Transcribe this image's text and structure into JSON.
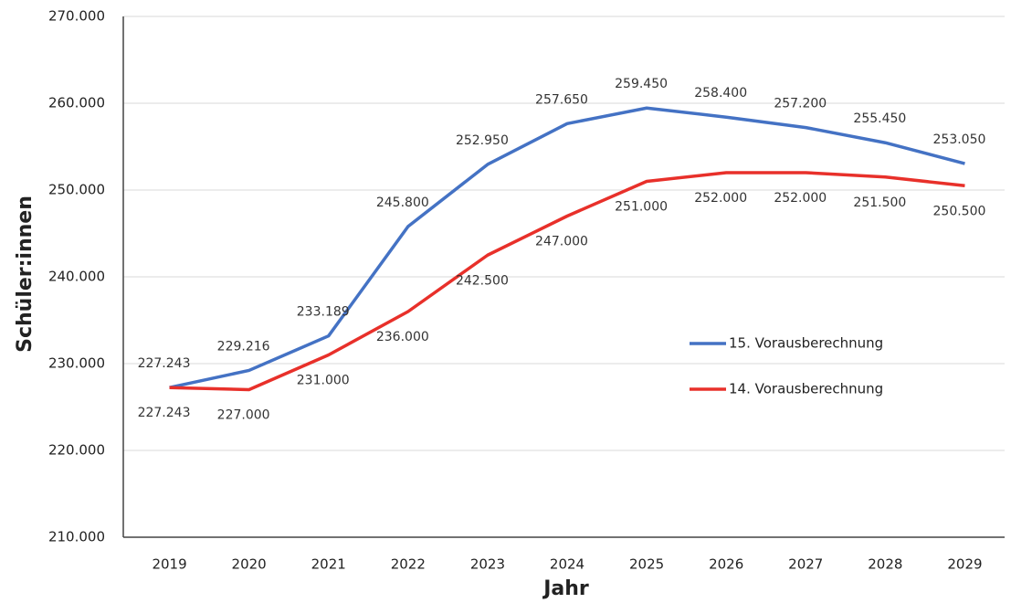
{
  "chart_data": {
    "type": "line",
    "x_label": "Jahr",
    "y_label": "Schüler:innen",
    "categories": [
      "2019",
      "2020",
      "2021",
      "2022",
      "2023",
      "2024",
      "2025",
      "2026",
      "2027",
      "2028",
      "2029"
    ],
    "series": [
      {
        "name": "15. Vorausberechnung",
        "color": "#4472c4",
        "values": [
          227243,
          229216,
          233189,
          245800,
          252950,
          257650,
          259450,
          258400,
          257200,
          255450,
          253050
        ],
        "value_labels": [
          "227.243",
          "229.216",
          "233.189",
          "245.800",
          "252.950",
          "257.650",
          "259.450",
          "258.400",
          "257.200",
          "255.450",
          "253.050"
        ]
      },
      {
        "name": "14. Vorausberechnung",
        "color": "#e8302a",
        "values": [
          227243,
          227000,
          231000,
          236000,
          242500,
          247000,
          251000,
          252000,
          252000,
          251500,
          250500
        ],
        "value_labels": [
          "227.243",
          "227.000",
          "231.000",
          "236.000",
          "242.500",
          "247.000",
          "251.000",
          "252.000",
          "252.000",
          "251.500",
          "250.500"
        ]
      }
    ],
    "ylim": [
      210000,
      270000
    ],
    "yticks": [
      {
        "value": 210000,
        "label": "210.000"
      },
      {
        "value": 220000,
        "label": "220.000"
      },
      {
        "value": 230000,
        "label": "230.000"
      },
      {
        "value": 240000,
        "label": "240.000"
      },
      {
        "value": 250000,
        "label": "250.000"
      },
      {
        "value": 260000,
        "label": "260.000"
      },
      {
        "value": 270000,
        "label": "270.000"
      }
    ],
    "grid": true
  }
}
